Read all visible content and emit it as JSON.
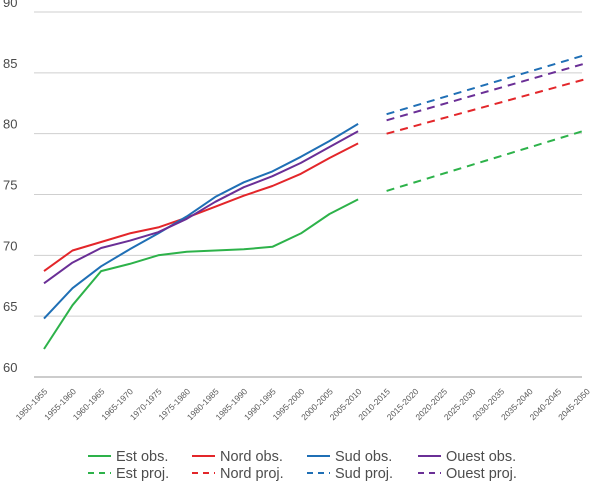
{
  "chart_data": {
    "type": "line",
    "title": "",
    "xlabel": "",
    "ylabel": "",
    "ylim": [
      60,
      90
    ],
    "yticks": [
      60,
      65,
      70,
      75,
      80,
      85,
      90
    ],
    "grid": "horizontal",
    "legend_position": "bottom",
    "categories": [
      "1950-1955",
      "1955-1960",
      "1960-1965",
      "1965-1970",
      "1970-1975",
      "1975-1980",
      "1980-1985",
      "1985-1990",
      "1990-1995",
      "1995-2000",
      "2000-2005",
      "2005-2010",
      "2010-2015",
      "2015-2020",
      "2020-2025",
      "2025-2030",
      "2030-2035",
      "2035-2040",
      "2040-2045",
      "2045-2050"
    ],
    "series": [
      {
        "name": "Est obs.",
        "color": "#2db24a",
        "style": "solid",
        "values": [
          62.3,
          65.9,
          68.7,
          69.3,
          70.0,
          70.3,
          70.4,
          70.5,
          70.7,
          71.8,
          73.4,
          74.6,
          null,
          null,
          null,
          null,
          null,
          null,
          null,
          null
        ]
      },
      {
        "name": "Est proj.",
        "color": "#2db24a",
        "style": "dashed",
        "values": [
          null,
          null,
          null,
          null,
          null,
          null,
          null,
          null,
          null,
          null,
          null,
          null,
          75.3,
          null,
          null,
          null,
          null,
          null,
          null,
          80.3
        ]
      },
      {
        "name": "Nord obs.",
        "color": "#e3262a",
        "style": "solid",
        "values": [
          68.7,
          70.4,
          71.1,
          71.8,
          72.3,
          73.1,
          74.0,
          74.9,
          75.7,
          76.7,
          78.0,
          79.2,
          null,
          null,
          null,
          null,
          null,
          null,
          null,
          null
        ]
      },
      {
        "name": "Nord proj.",
        "color": "#e3262a",
        "style": "dashed",
        "values": [
          null,
          null,
          null,
          null,
          null,
          null,
          null,
          null,
          null,
          null,
          null,
          null,
          80.0,
          null,
          null,
          null,
          null,
          null,
          null,
          84.5
        ]
      },
      {
        "name": "Sud obs.",
        "color": "#1f6fb5",
        "style": "solid",
        "values": [
          64.8,
          67.3,
          69.1,
          70.5,
          71.8,
          73.2,
          74.8,
          76.0,
          76.9,
          78.1,
          79.4,
          80.8,
          null,
          null,
          null,
          null,
          null,
          null,
          null,
          null
        ]
      },
      {
        "name": "Sud proj.",
        "color": "#1f6fb5",
        "style": "dashed",
        "values": [
          null,
          null,
          null,
          null,
          null,
          null,
          null,
          null,
          null,
          null,
          null,
          null,
          81.6,
          null,
          null,
          null,
          null,
          null,
          null,
          86.5
        ]
      },
      {
        "name": "Ouest obs.",
        "color": "#6a2f96",
        "style": "solid",
        "values": [
          67.7,
          69.4,
          70.6,
          71.2,
          71.9,
          73.0,
          74.4,
          75.6,
          76.5,
          77.6,
          78.9,
          80.2,
          null,
          null,
          null,
          null,
          null,
          null,
          null,
          null
        ]
      },
      {
        "name": "Ouest proj.",
        "color": "#6a2f96",
        "style": "dashed",
        "values": [
          null,
          null,
          null,
          null,
          null,
          null,
          null,
          null,
          null,
          null,
          null,
          null,
          81.1,
          null,
          null,
          null,
          null,
          null,
          null,
          85.8
        ]
      }
    ],
    "legend_rows": [
      [
        "Est obs.",
        "Nord obs.",
        "Sud obs.",
        "Ouest obs."
      ],
      [
        "Est proj.",
        "Nord proj.",
        "Sud proj.",
        "Ouest proj."
      ]
    ]
  }
}
